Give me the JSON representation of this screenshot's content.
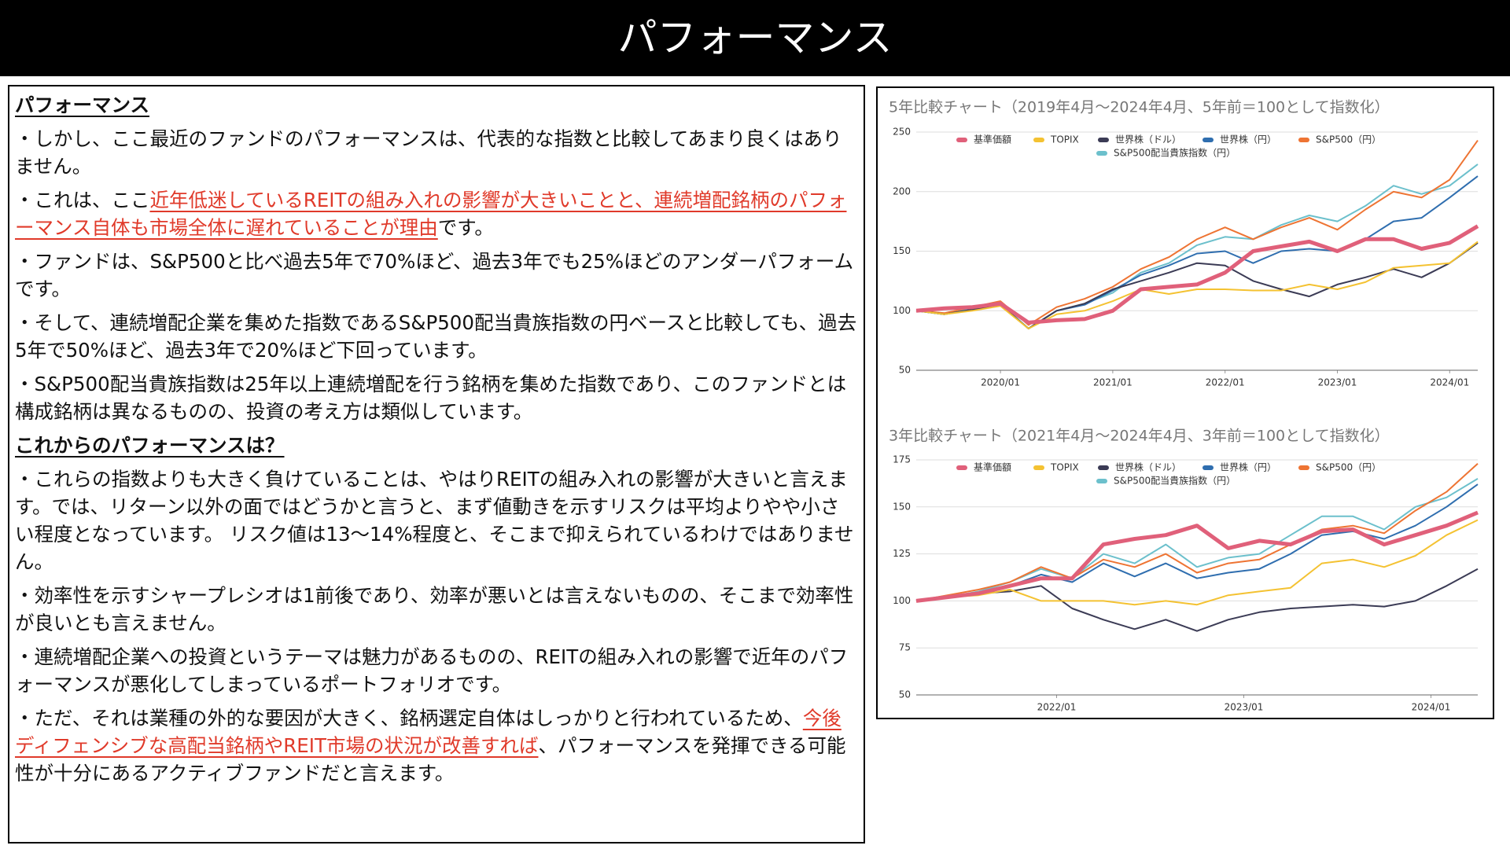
{
  "header": {
    "title": "パフォーマンス"
  },
  "text": {
    "blocks": [
      {
        "heading": "パフォーマンス"
      },
      {
        "parts": [
          {
            "text": "・しかし、ここ最近のファンドのパフォーマンスは、代表的な指数と比較してあまり良くはありません。"
          }
        ]
      },
      {
        "parts": [
          {
            "text": "・これは、ここ"
          },
          {
            "text": "近年低迷しているREITの組み入れの影響が大きいことと、連続増配銘柄のパフォーマンス自体も市場全体に遅れていることが理由",
            "highlight": true
          },
          {
            "text": "です。"
          }
        ]
      },
      {
        "parts": [
          {
            "text": "・ファンドは、S&P500と比べ過去5年で70%ほど、過去3年でも25%ほどのアンダーパフォームです。"
          }
        ]
      },
      {
        "parts": [
          {
            "text": "・そして、連続増配企業を集めた指数であるS&P500配当貴族指数の円ベースと比較しても、過去5年で50%ほど、過去3年で20%ほど下回っています。"
          }
        ]
      },
      {
        "parts": [
          {
            "text": "・S&P500配当貴族指数は25年以上連続増配を行う銘柄を集めた指数であり、このファンドとは構成銘柄は異なるものの、投資の考え方は類似しています。"
          }
        ]
      },
      {
        "heading": "これからのパフォーマンスは？"
      },
      {
        "parts": [
          {
            "text": "・これらの指数よりも大きく負けていることは、やはりREITの組み入れの影響が大きいと言えます。では、リターン以外の面ではどうかと言うと、まず値動きを示すリスクは平均よりやや小さい程度となっています。 リスク値は13〜14%程度と、そこまで抑えられているわけではありません。"
          }
        ]
      },
      {
        "parts": [
          {
            "text": "・効率性を示すシャープレシオは1前後であり、効率が悪いとは言えないものの、そこまで効率性が良いとも言えません。"
          }
        ]
      },
      {
        "parts": [
          {
            "text": "・連続増配企業への投資というテーマは魅力があるものの、REITの組み入れの影響で近年のパフォーマンスが悪化してしまっているポートフォリオです。"
          }
        ]
      },
      {
        "parts": [
          {
            "text": "・ただ、それは業種の外的な要因が大きく、銘柄選定自体はしっかりと行われているため、"
          },
          {
            "text": "今後ディフェンシブな高配当銘柄やREIT市場の状況が改善すれば",
            "highlight": true
          },
          {
            "text": "、パフォーマンスを発揮できる可能性が十分にあるアクティブファンドだと言えます。"
          }
        ]
      }
    ]
  },
  "chart_data": [
    {
      "type": "line",
      "title": "5年比較チャート（2019年4月～2024年4月、5年前＝100として指数化）",
      "x": [
        "2019/04",
        "2019/07",
        "2019/10",
        "2020/01",
        "2020/04",
        "2020/07",
        "2020/10",
        "2021/01",
        "2021/04",
        "2021/07",
        "2021/10",
        "2022/01",
        "2022/04",
        "2022/07",
        "2022/10",
        "2023/01",
        "2023/04",
        "2023/07",
        "2023/10",
        "2024/01",
        "2024/04"
      ],
      "xlim": [
        "2019/04",
        "2024/04"
      ],
      "xticks": [
        "2020/01",
        "2021/01",
        "2022/01",
        "2023/01",
        "2024/01"
      ],
      "ylim": [
        50,
        250
      ],
      "yticks": [
        50,
        100,
        150,
        200,
        250
      ],
      "grid": true,
      "series": [
        {
          "name": "基準価額",
          "color": "#e0607a",
          "values": [
            100,
            102,
            103,
            106,
            90,
            92,
            93,
            100,
            118,
            120,
            122,
            132,
            150,
            154,
            158,
            150,
            160,
            160,
            152,
            157,
            171
          ]
        },
        {
          "name": "TOPIX",
          "color": "#f4c232",
          "values": [
            100,
            97,
            100,
            104,
            85,
            97,
            100,
            108,
            118,
            114,
            118,
            118,
            117,
            117,
            122,
            118,
            124,
            136,
            138,
            140,
            158
          ]
        },
        {
          "name": "世界株（ドル）",
          "color": "#3b3b55",
          "values": [
            100,
            97,
            101,
            105,
            85,
            100,
            106,
            118,
            125,
            132,
            140,
            138,
            125,
            118,
            112,
            122,
            128,
            135,
            128,
            140,
            157
          ]
        },
        {
          "name": "世界株（円）",
          "color": "#2f6eaf",
          "values": [
            100,
            97,
            101,
            105,
            85,
            100,
            105,
            117,
            130,
            138,
            148,
            150,
            140,
            150,
            152,
            150,
            160,
            175,
            178,
            195,
            213
          ]
        },
        {
          "name": "S&P500（円）",
          "color": "#ee7433",
          "values": [
            100,
            98,
            103,
            108,
            88,
            103,
            110,
            120,
            135,
            145,
            160,
            170,
            160,
            170,
            178,
            168,
            185,
            200,
            195,
            210,
            243
          ]
        },
        {
          "name": "S&P500配当貴族指数（円）",
          "color": "#6cc0cc",
          "values": [
            100,
            97,
            102,
            106,
            85,
            100,
            106,
            115,
            132,
            140,
            155,
            162,
            160,
            172,
            180,
            175,
            188,
            205,
            198,
            205,
            223
          ]
        }
      ]
    },
    {
      "type": "line",
      "title": "3年比較チャート（2021年4月～2024年4月、3年前＝100として指数化）",
      "x": [
        "2021/04",
        "2021/06",
        "2021/08",
        "2021/10",
        "2021/12",
        "2022/02",
        "2022/04",
        "2022/06",
        "2022/08",
        "2022/10",
        "2022/12",
        "2023/02",
        "2023/04",
        "2023/06",
        "2023/08",
        "2023/10",
        "2023/12",
        "2024/02",
        "2024/04"
      ],
      "xlim": [
        "2021/04",
        "2024/04"
      ],
      "xticks": [
        "2022/01",
        "2023/01",
        "2024/01"
      ],
      "ylim": [
        50,
        175
      ],
      "yticks": [
        50,
        75,
        100,
        125,
        150,
        175
      ],
      "grid": true,
      "series": [
        {
          "name": "基準価額",
          "color": "#e0607a",
          "values": [
            100,
            102,
            104,
            108,
            112,
            112,
            130,
            133,
            135,
            140,
            128,
            132,
            130,
            137,
            138,
            130,
            135,
            140,
            147
          ]
        },
        {
          "name": "TOPIX",
          "color": "#f4c232",
          "values": [
            100,
            102,
            103,
            106,
            100,
            100,
            100,
            98,
            100,
            98,
            103,
            105,
            107,
            120,
            122,
            118,
            124,
            135,
            143
          ]
        },
        {
          "name": "世界株（ドル）",
          "color": "#3b3b55",
          "values": [
            100,
            102,
            104,
            105,
            108,
            96,
            90,
            85,
            90,
            84,
            90,
            94,
            96,
            97,
            98,
            97,
            100,
            108,
            117
          ]
        },
        {
          "name": "世界株（円）",
          "color": "#2f6eaf",
          "values": [
            100,
            102,
            104,
            108,
            114,
            110,
            120,
            113,
            120,
            112,
            115,
            117,
            125,
            135,
            137,
            133,
            140,
            150,
            162
          ]
        },
        {
          "name": "S&P500（円）",
          "color": "#ee7433",
          "values": [
            100,
            103,
            106,
            110,
            118,
            112,
            122,
            118,
            125,
            115,
            120,
            122,
            130,
            138,
            140,
            136,
            148,
            158,
            173
          ]
        },
        {
          "name": "S&P500配当貴族指数（円）",
          "color": "#6cc0cc",
          "values": [
            100,
            102,
            105,
            110,
            117,
            112,
            125,
            120,
            130,
            118,
            123,
            125,
            135,
            145,
            145,
            138,
            150,
            155,
            165
          ]
        }
      ]
    }
  ]
}
